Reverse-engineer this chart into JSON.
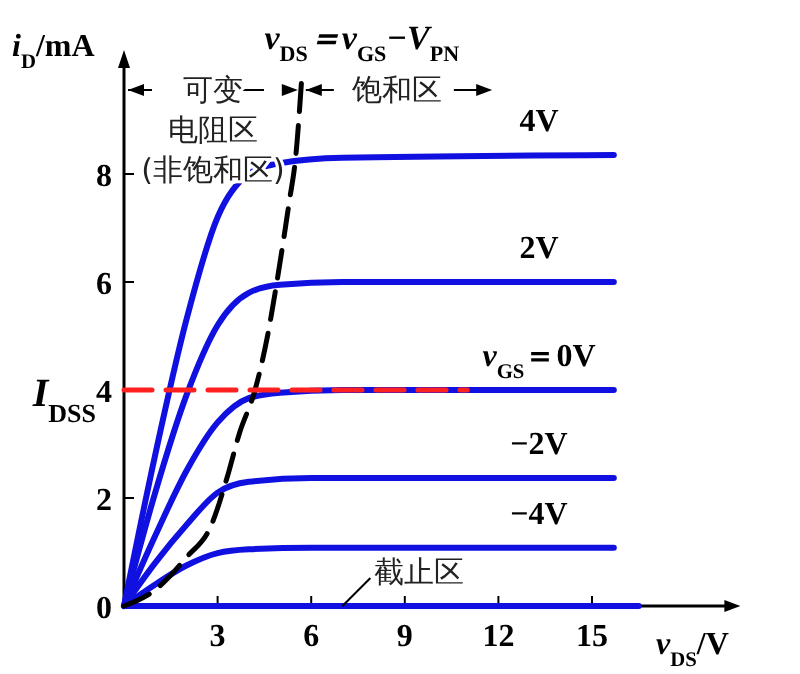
{
  "chart_data": {
    "type": "line",
    "xlabel": "v$_{DS}$/V",
    "ylabel": "i$_{D}$/mA",
    "xlim": [
      0,
      19.5
    ],
    "ylim": [
      0,
      10
    ],
    "xticks": [
      3,
      6,
      9,
      12,
      15
    ],
    "yticks": [
      0,
      2,
      4,
      6,
      8
    ],
    "grid": false,
    "marker": "none",
    "line_style": "solid",
    "series": [
      {
        "name": "4V",
        "color": "#1010e0",
        "x": [
          0,
          1,
          2,
          3,
          4,
          5,
          7,
          15.7
        ],
        "values": [
          0,
          2.8,
          5.3,
          7.2,
          8.0,
          8.2,
          8.3,
          8.35
        ]
      },
      {
        "name": "2V",
        "color": "#1010e0",
        "x": [
          0,
          1,
          2,
          3,
          4,
          5,
          7,
          15.7
        ],
        "values": [
          0,
          2.1,
          3.9,
          5.2,
          5.8,
          5.95,
          6.0,
          6.0
        ]
      },
      {
        "name": "v$_{GS}$＝0V",
        "color": "#1010e0",
        "x": [
          0,
          1,
          2,
          3,
          4,
          5,
          7,
          15.7
        ],
        "values": [
          0,
          1.3,
          2.5,
          3.4,
          3.85,
          3.95,
          4.0,
          4.0
        ]
      },
      {
        "name": "−2V",
        "color": "#1010e0",
        "x": [
          0,
          1,
          2,
          3,
          4,
          6,
          15.7
        ],
        "values": [
          0,
          0.8,
          1.5,
          2.1,
          2.3,
          2.37,
          2.37
        ]
      },
      {
        "name": "−4V",
        "color": "#1010e0",
        "x": [
          0,
          1,
          2,
          3,
          4,
          6,
          15.7
        ],
        "values": [
          0,
          0.4,
          0.75,
          0.98,
          1.05,
          1.08,
          1.08
        ]
      },
      {
        "color": "#1010e0",
        "x": [
          0,
          16.5
        ],
        "values": [
          0,
          0
        ]
      },
      {
        "name": "v$_{DS}$＝v$_{GS}$−V$_{PN}$",
        "color": "#000000",
        "line_style": "dashed",
        "x": [
          0,
          1,
          2,
          2.8,
          3.3,
          3.7,
          4.2,
          4.6,
          4.9,
          5.3,
          5.5,
          5.7
        ],
        "values": [
          0,
          0.3,
          0.9,
          1.5,
          2.37,
          3.2,
          4.0,
          5.0,
          6.0,
          7.5,
          8.3,
          9.8
        ]
      },
      {
        "name": "I$_{DSS}$",
        "color": "#ff2020",
        "line_style": "dashed",
        "x": [
          0,
          11
        ],
        "values": [
          4,
          4
        ]
      }
    ],
    "annotations": [
      "可变电阻区(非饱和区)",
      "饱和区",
      {
        "text": "截止区",
        "x": 7,
        "y": 0
      }
    ]
  }
}
